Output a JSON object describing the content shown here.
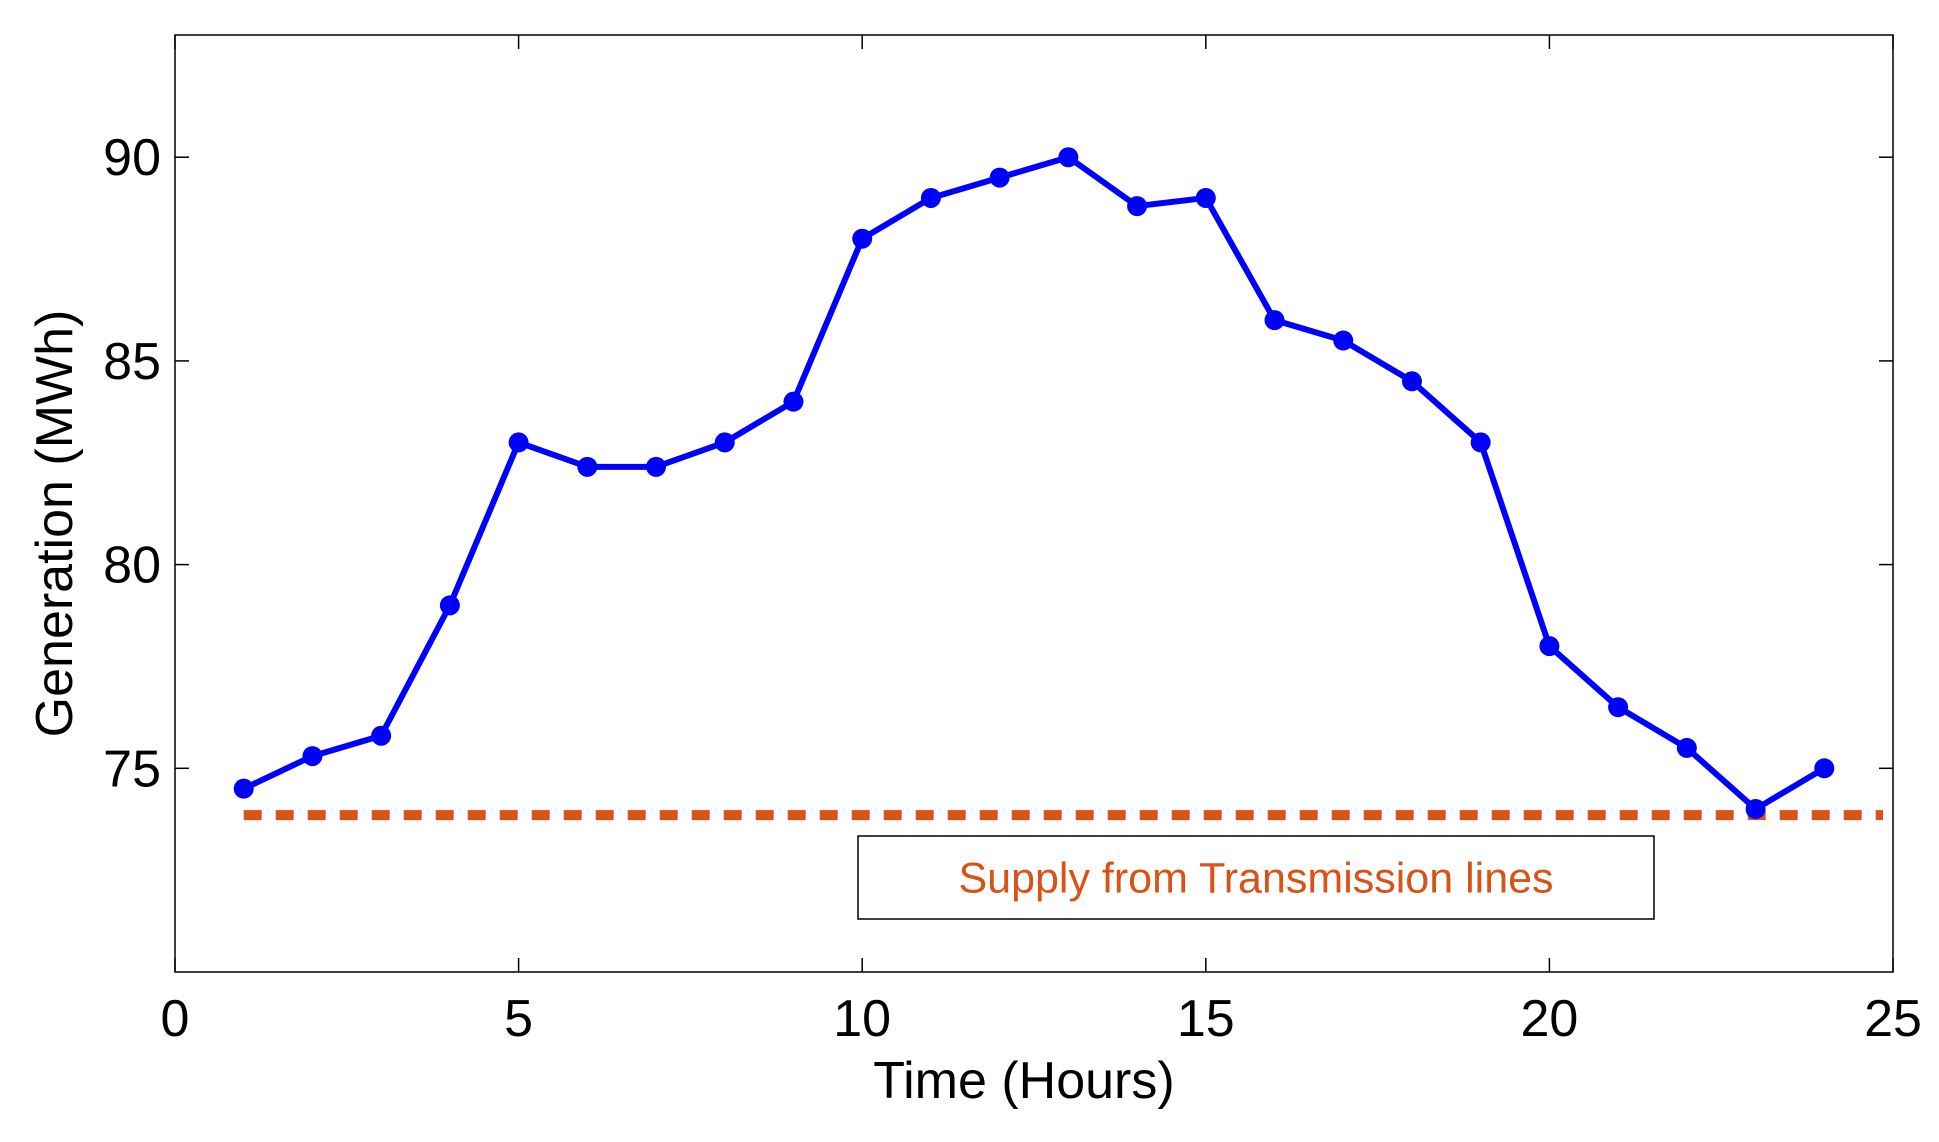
{
  "chart_data": {
    "type": "line",
    "xlabel": "Time (Hours)",
    "ylabel": "Generation (MWh)",
    "xlim": [
      0,
      25
    ],
    "ylim": [
      70,
      93
    ],
    "xticks": [
      0,
      5,
      10,
      15,
      20,
      25
    ],
    "yticks": [
      75,
      80,
      85,
      90
    ],
    "grid": false,
    "series": [
      {
        "name": "",
        "color": "#0000ff",
        "marker": "circle",
        "x": [
          1,
          2,
          3,
          4,
          5,
          6,
          7,
          8,
          9,
          10,
          11,
          12,
          13,
          14,
          15,
          16,
          17,
          18,
          19,
          20,
          21,
          22,
          23,
          24
        ],
        "y": [
          74.5,
          75.3,
          75.8,
          79.0,
          83.0,
          82.4,
          82.4,
          83.0,
          84.0,
          88.0,
          89.0,
          89.5,
          90.0,
          88.8,
          89.0,
          86.0,
          85.5,
          84.5,
          83.0,
          78.0,
          76.5,
          75.5,
          74.0,
          75.0
        ]
      }
    ],
    "reference_line": {
      "y": 73.85,
      "color": "#d95319",
      "style": "dashed"
    },
    "annotation": {
      "text": "Supply from Transmission lines",
      "color": "#d95319"
    }
  }
}
